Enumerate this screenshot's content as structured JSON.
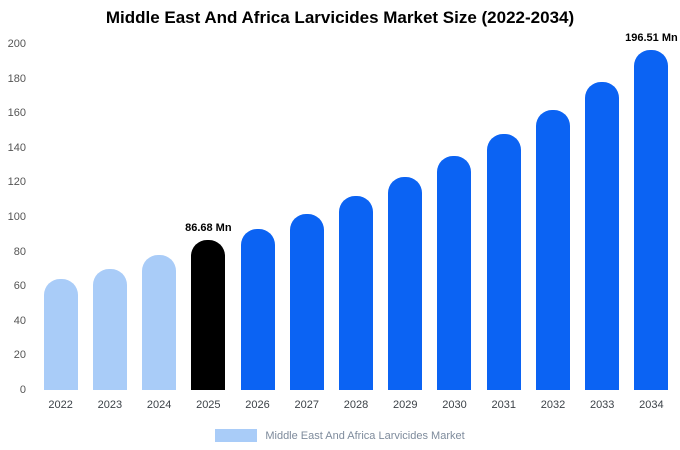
{
  "title": "Middle East And Africa Larvicides Market Size (2022-2034)",
  "legend": {
    "label": "Middle East And Africa Larvicides Market",
    "swatch_color": "#a9ccf8"
  },
  "colors": {
    "historical_bar": "#a9ccf8",
    "highlight_bar": "#000000",
    "forecast_bar": "#0b63f3",
    "background": "#ffffff",
    "title_text": "#000000",
    "axis_text": "#555555",
    "legend_text": "#7e8b9c"
  },
  "chart_data": {
    "type": "bar",
    "title": "Middle East And Africa Larvicides Market Size (2022-2034)",
    "categories": [
      "2022",
      "2023",
      "2024",
      "2025",
      "2026",
      "2027",
      "2028",
      "2029",
      "2030",
      "2031",
      "2032",
      "2033",
      "2034"
    ],
    "values": [
      64,
      70,
      78,
      86.68,
      93,
      102,
      112,
      123,
      135,
      148,
      162,
      178,
      196.51
    ],
    "bar_colors": [
      "#a9ccf8",
      "#a9ccf8",
      "#a9ccf8",
      "#000000",
      "#0b63f3",
      "#0b63f3",
      "#0b63f3",
      "#0b63f3",
      "#0b63f3",
      "#0b63f3",
      "#0b63f3",
      "#0b63f3",
      "#0b63f3"
    ],
    "annotations": [
      {
        "category": "2025",
        "text": "86.68 Mn"
      },
      {
        "category": "2034",
        "text": "196.51 Mn"
      }
    ],
    "xlabel": "",
    "ylabel": "",
    "ylim": [
      0,
      200
    ],
    "yticks": [
      0,
      20,
      40,
      60,
      80,
      100,
      120,
      140,
      160,
      180,
      200
    ],
    "grid": false,
    "legend_position": "bottom",
    "unit": "Mn"
  }
}
